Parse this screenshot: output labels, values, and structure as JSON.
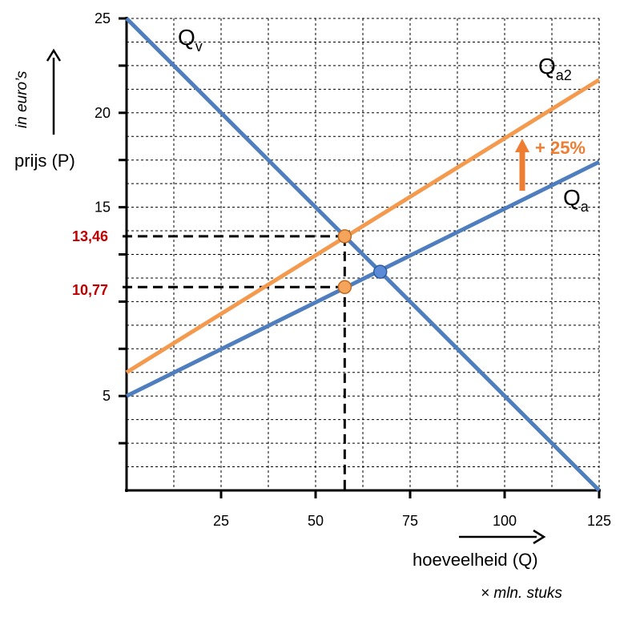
{
  "colors": {
    "demand": "#4F7EBF",
    "supply": "#4F7EBF",
    "supply_shifted": "#F39A4E",
    "shift_arrow": "#ED7D31",
    "price_labels": "#C00000",
    "axis": "#000000",
    "grid": "#000000"
  },
  "chart_data": {
    "type": "line",
    "xlabel": "hoeveelheid (Q)",
    "x_unit": "× mln. stuks",
    "ylabel": "prijs (P)",
    "y_unit": "in euro’s",
    "xlim": [
      0,
      125
    ],
    "ylim": [
      0,
      25
    ],
    "x_ticks": [
      25,
      50,
      75,
      100,
      125
    ],
    "y_ticks": [
      5,
      15,
      20,
      25
    ],
    "grid": true,
    "series": [
      {
        "name": "Qv",
        "label_main": "Q",
        "label_sub": "v",
        "x": [
          0,
          125
        ],
        "y": [
          25,
          0
        ]
      },
      {
        "name": "Qa",
        "label_main": "Q",
        "label_sub": "a",
        "x": [
          0,
          125
        ],
        "y": [
          5,
          17.4
        ]
      },
      {
        "name": "Qa2",
        "label_main": "Q",
        "label_sub": "a2",
        "x": [
          0,
          125
        ],
        "y": [
          6.25,
          21.75
        ]
      }
    ],
    "points": [
      {
        "series": "Qv∩Qa",
        "x": 67.1,
        "y": 11.58
      },
      {
        "series": "Qv∩Qa2",
        "x": 57.7,
        "y": 13.46
      },
      {
        "series": "Qa",
        "x": 57.7,
        "y": 10.77
      }
    ],
    "annotations": {
      "price_high": {
        "text": "13,46",
        "value": 13.46
      },
      "price_low": {
        "text": "10,77",
        "value": 10.77
      },
      "quantity_marker": 57.7,
      "shift": {
        "text": "+ 25%"
      }
    }
  }
}
